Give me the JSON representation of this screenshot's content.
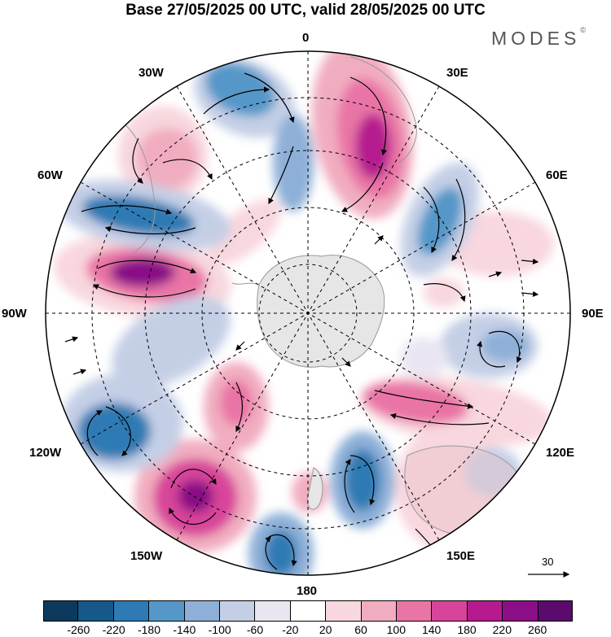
{
  "title": "Base 27/05/2025 00 UTC, valid 28/05/2025 00 UTC",
  "brand": {
    "name": "MODES",
    "mark": "©"
  },
  "longitudes": {
    "l0": "0",
    "l30e": "30E",
    "l60e": "60E",
    "l90e": "90E",
    "l120e": "120E",
    "l150e": "150E",
    "l180": "180",
    "l150w": "150W",
    "l120w": "120W",
    "l90w": "90W",
    "l60w": "60W",
    "l30w": "30W"
  },
  "reference_vector": {
    "label": "30"
  },
  "colorbar": {
    "ticks": [
      "-260",
      "-220",
      "-180",
      "-140",
      "-100",
      "-60",
      "-20",
      "20",
      "60",
      "100",
      "140",
      "180",
      "220",
      "260"
    ],
    "colors": [
      "#0d3a5c",
      "#16588a",
      "#2e7ab4",
      "#5597c8",
      "#8eb0d8",
      "#c4cfe6",
      "#e9e6f2",
      "#ffffff",
      "#f8d7de",
      "#f1adc0",
      "#e974a6",
      "#d8449a",
      "#b51a8f",
      "#8a0e86",
      "#5b0a6e"
    ]
  },
  "map_colors": {
    "ocean_land": "#e6e6e6",
    "neutral": "#ffffff",
    "grid": "#000000"
  }
}
